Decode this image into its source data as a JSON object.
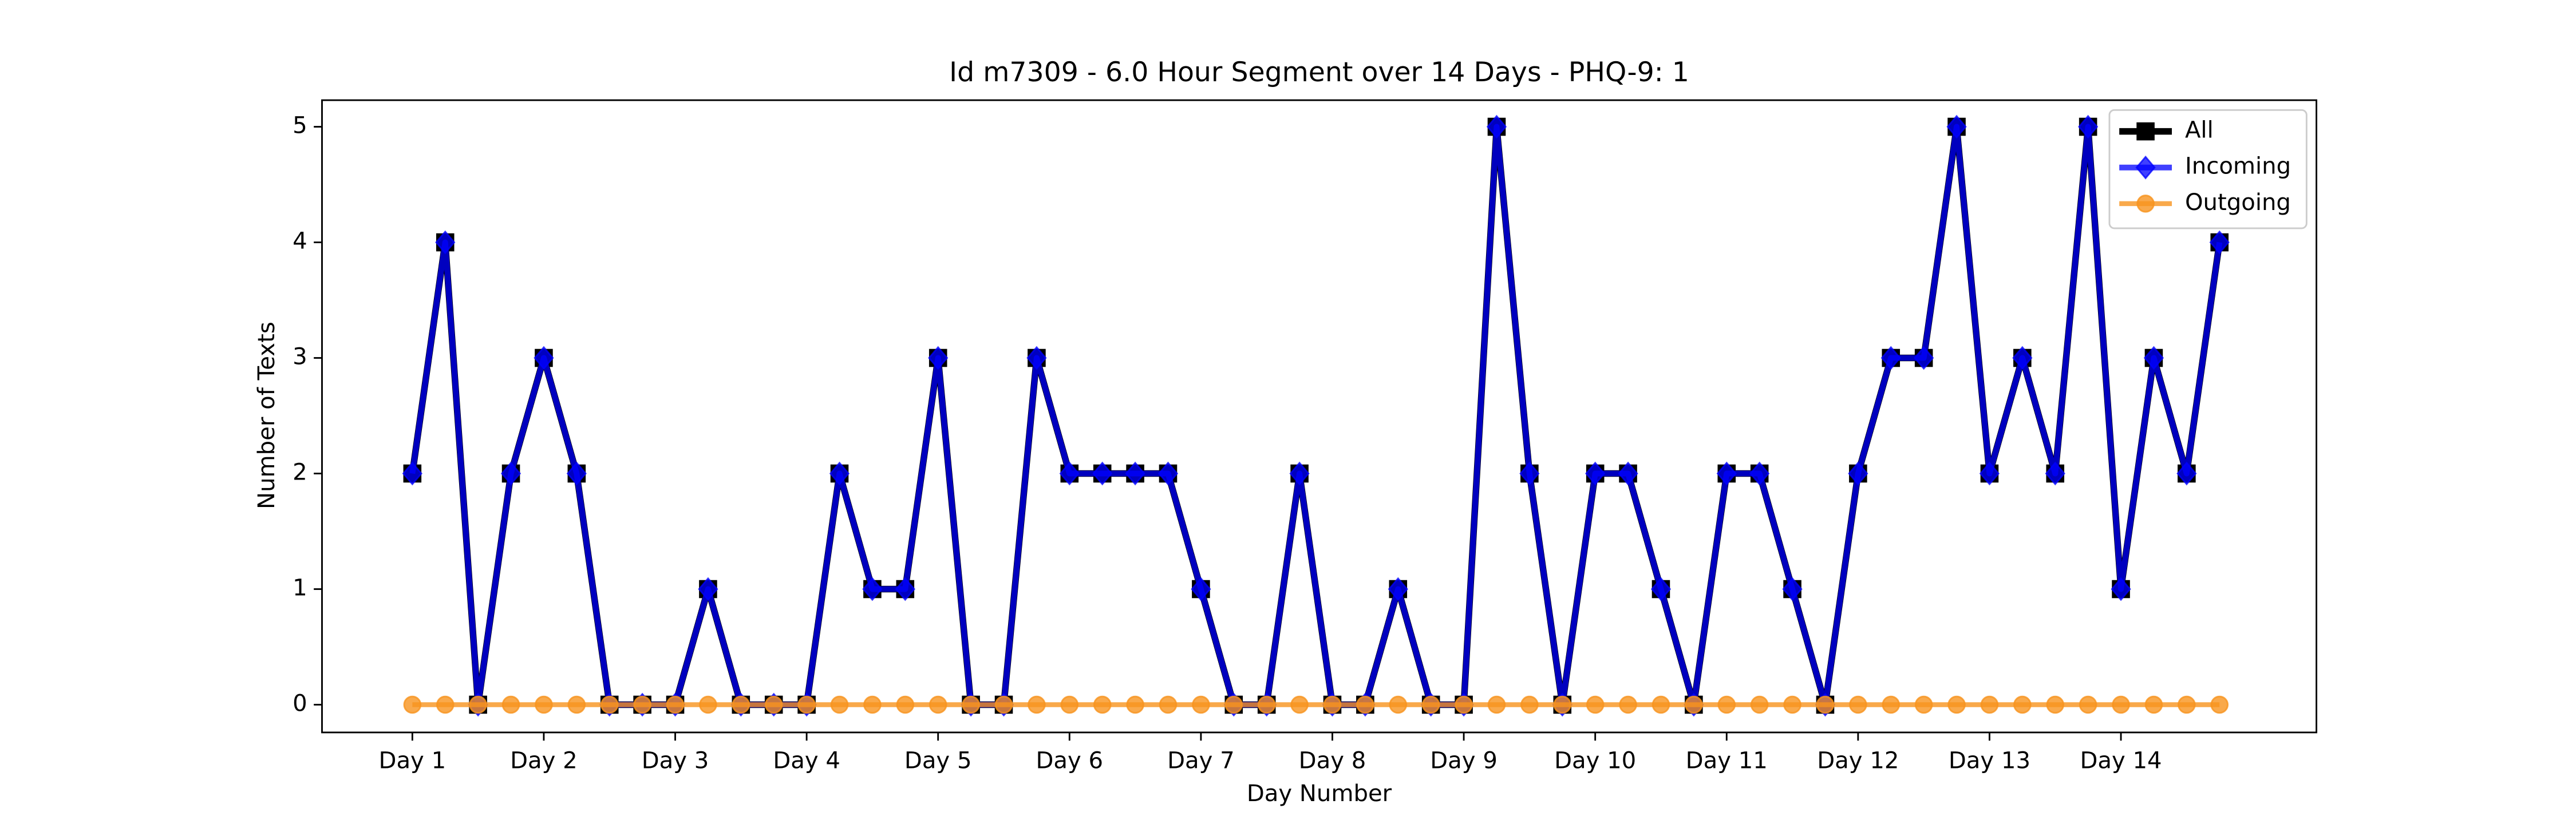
{
  "chart_data": {
    "type": "line",
    "title": "Id m7309 - 6.0 Hour Segment over 14 Days - PHQ-9: 1",
    "xlabel": "Day Number",
    "ylabel": "Number of Texts",
    "x": [
      0,
      1,
      2,
      3,
      4,
      5,
      6,
      7,
      8,
      9,
      10,
      11,
      12,
      13,
      14,
      15,
      16,
      17,
      18,
      19,
      20,
      21,
      22,
      23,
      24,
      25,
      26,
      27,
      28,
      29,
      30,
      31,
      32,
      33,
      34,
      35,
      36,
      37,
      38,
      39,
      40,
      41,
      42,
      43,
      44,
      45,
      46,
      47,
      48,
      49,
      50,
      51,
      52,
      53,
      54,
      55
    ],
    "series": [
      {
        "name": "All",
        "color": "#000000",
        "marker": "square",
        "values": [
          2,
          4,
          0,
          2,
          3,
          2,
          0,
          0,
          0,
          1,
          0,
          0,
          0,
          2,
          1,
          1,
          3,
          0,
          0,
          3,
          2,
          2,
          2,
          2,
          1,
          0,
          0,
          2,
          0,
          0,
          1,
          0,
          0,
          5,
          2,
          0,
          2,
          2,
          1,
          0,
          2,
          2,
          1,
          0,
          2,
          3,
          3,
          5,
          2,
          3,
          2,
          5,
          1,
          3,
          2,
          4
        ]
      },
      {
        "name": "Incoming",
        "color": "#0000ff",
        "marker": "diamond",
        "values": [
          2,
          4,
          0,
          2,
          3,
          2,
          0,
          0,
          0,
          1,
          0,
          0,
          0,
          2,
          1,
          1,
          3,
          0,
          0,
          3,
          2,
          2,
          2,
          2,
          1,
          0,
          0,
          2,
          0,
          0,
          1,
          0,
          0,
          5,
          2,
          0,
          2,
          2,
          1,
          0,
          2,
          2,
          1,
          0,
          2,
          3,
          3,
          5,
          2,
          3,
          2,
          5,
          1,
          3,
          2,
          4
        ]
      },
      {
        "name": "Outgoing",
        "color": "#f7931e",
        "marker": "circle",
        "values": [
          0,
          0,
          0,
          0,
          0,
          0,
          0,
          0,
          0,
          0,
          0,
          0,
          0,
          0,
          0,
          0,
          0,
          0,
          0,
          0,
          0,
          0,
          0,
          0,
          0,
          0,
          0,
          0,
          0,
          0,
          0,
          0,
          0,
          0,
          0,
          0,
          0,
          0,
          0,
          0,
          0,
          0,
          0,
          0,
          0,
          0,
          0,
          0,
          0,
          0,
          0,
          0,
          0,
          0,
          0,
          0
        ]
      }
    ],
    "xlim": [
      -2.75,
      57.95
    ],
    "xticks": [
      {
        "value": 0,
        "label": "Day 1"
      },
      {
        "value": 4,
        "label": "Day 2"
      },
      {
        "value": 8,
        "label": "Day 3"
      },
      {
        "value": 12,
        "label": "Day 4"
      },
      {
        "value": 16,
        "label": "Day 5"
      },
      {
        "value": 20,
        "label": "Day 6"
      },
      {
        "value": 24,
        "label": "Day 7"
      },
      {
        "value": 28,
        "label": "Day 8"
      },
      {
        "value": 32,
        "label": "Day 9"
      },
      {
        "value": 36,
        "label": "Day 10"
      },
      {
        "value": 40,
        "label": "Day 11"
      },
      {
        "value": 44,
        "label": "Day 12"
      },
      {
        "value": 48,
        "label": "Day 13"
      },
      {
        "value": 52,
        "label": "Day 14"
      }
    ],
    "ylim": [
      -0.24,
      5.23
    ],
    "yticks": [
      0,
      1,
      2,
      3,
      4,
      5
    ],
    "legend": "upper right",
    "grid": false
  }
}
